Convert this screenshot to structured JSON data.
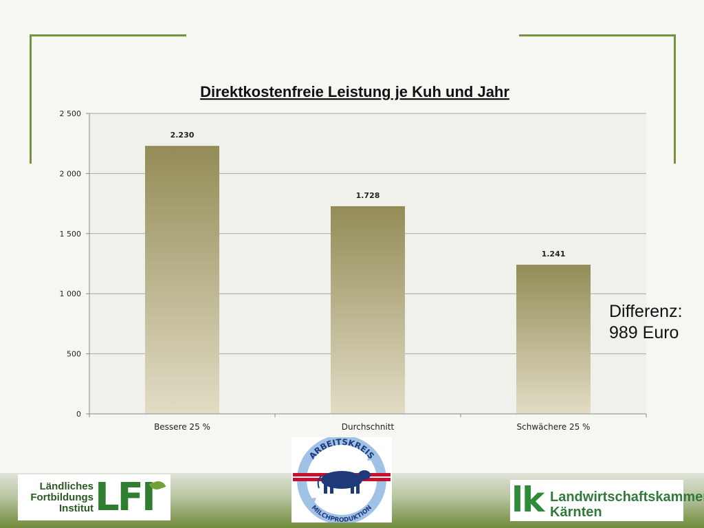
{
  "chart_data": {
    "type": "bar",
    "title": "Direktkostenfreie Leistung je Kuh und Jahr",
    "categories": [
      "Bessere 25 %",
      "Durchschnitt",
      "Schwächere 25 %"
    ],
    "values": [
      2230,
      1728,
      1241
    ],
    "data_labels": [
      "2.230",
      "1.728",
      "1.241"
    ],
    "yticks": [
      "0",
      "500",
      "1 000",
      "1 500",
      "2 000",
      "2 500"
    ],
    "ylim": [
      0,
      2500
    ],
    "grid": true,
    "xlabel": "",
    "ylabel": "",
    "bar_color_top": "#938c57",
    "bar_color_bottom": "#e2dcc5",
    "plot_background": "#f1f1ec"
  },
  "annotation": {
    "line1": "Differenz:",
    "line2": "989 Euro"
  },
  "logos": {
    "lfi": {
      "line1": "Ländliches",
      "line2": "Fortbildungs",
      "line3": "Institut",
      "mark": "LFI"
    },
    "arbeitskreis": {
      "top_text": "ARBEITSKREIS",
      "bottom_text": "MILCHPRODUKTION"
    },
    "lk": {
      "mark": "lk",
      "line1": "Landwirtschaftskammer",
      "line2": "Kärnten"
    }
  },
  "colors": {
    "frame": "#76923c",
    "brand_green": "#2f7d2f"
  }
}
